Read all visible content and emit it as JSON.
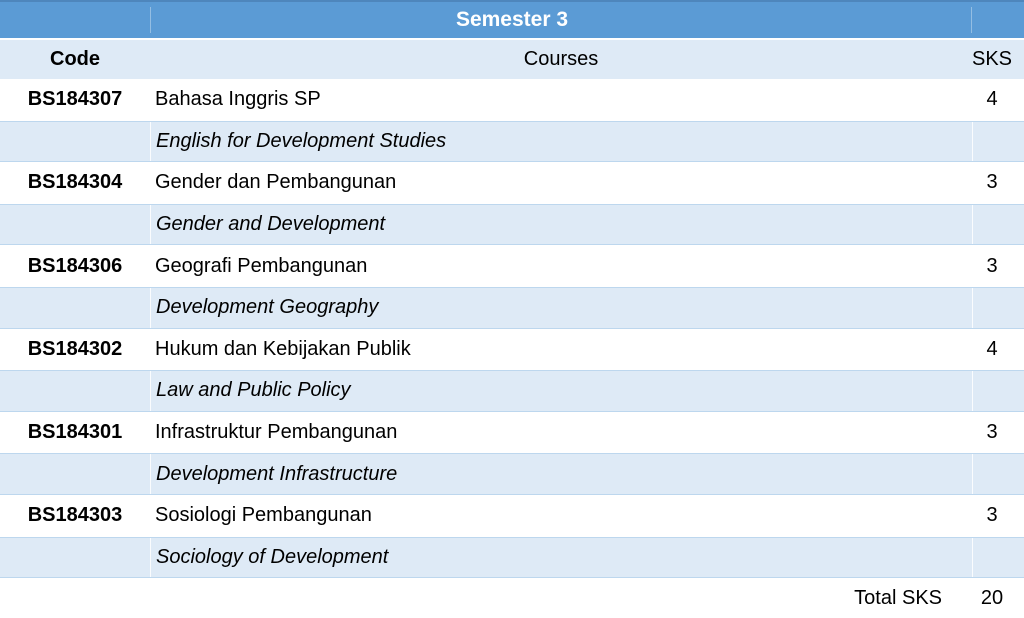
{
  "table": {
    "title": "Semester 3",
    "headers": {
      "code": "Code",
      "courses": "Courses",
      "sks": "SKS"
    },
    "rows": [
      {
        "code": "BS184307",
        "course_id": "Bahasa Inggris SP",
        "course_en": "English for Development Studies",
        "sks": "4"
      },
      {
        "code": "BS184304",
        "course_id": "Gender dan Pembangunan",
        "course_en": "Gender and Development",
        "sks": "3"
      },
      {
        "code": "BS184306",
        "course_id": "Geografi Pembangunan",
        "course_en": "Development Geography",
        "sks": "3"
      },
      {
        "code": "BS184302",
        "course_id": "Hukum dan Kebijakan Publik",
        "course_en": "Law and Public Policy",
        "sks": "4"
      },
      {
        "code": "BS184301",
        "course_id": "Infrastruktur Pembangunan",
        "course_en": "Development Infrastructure",
        "sks": "3"
      },
      {
        "code": "BS184303",
        "course_id": "Sosiologi Pembangunan",
        "course_en": "Sociology of Development",
        "sks": "3"
      }
    ],
    "total": {
      "label": "Total SKS",
      "value": "20"
    },
    "colors": {
      "header_blue": "#5B9BD5",
      "band_blue": "#DEEAF6",
      "border_blue": "#BDD7EE",
      "title_text": "#FFFFFF",
      "body_text": "#000000"
    }
  }
}
